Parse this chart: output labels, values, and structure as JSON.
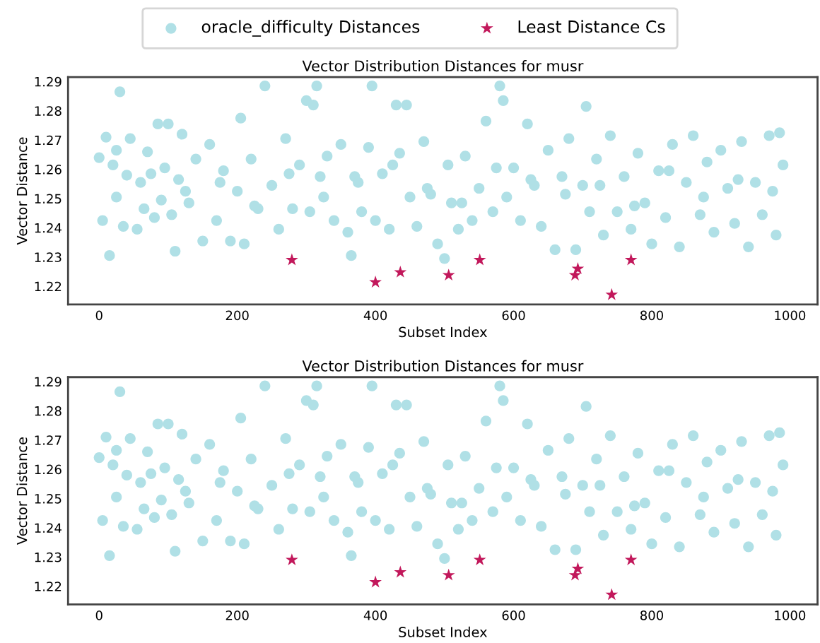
{
  "chart_data": [
    {
      "type": "scatter",
      "title": "Vector Distribution Distances for musr",
      "xlabel": "Subset Index",
      "ylabel": "Vector Distance",
      "xlim": [
        -45,
        1040
      ],
      "ylim": [
        1.2138,
        1.2915
      ],
      "xticks": [
        0,
        200,
        400,
        600,
        800,
        1000
      ],
      "yticks": [
        1.22,
        1.23,
        1.24,
        1.25,
        1.26,
        1.27,
        1.28,
        1.29
      ],
      "grid": false,
      "legend": "top",
      "marker": "circle",
      "series": [
        {
          "name": "oracle_difficulty Distances",
          "color": "#b0e0e6",
          "x": [
            0,
            5,
            10,
            15,
            20,
            25,
            30,
            35,
            40,
            45,
            55,
            60,
            65,
            70,
            80,
            85,
            90,
            95,
            100,
            105,
            110,
            115,
            120,
            130,
            140,
            150,
            160,
            170,
            180,
            190,
            200,
            205,
            210,
            220,
            230,
            240,
            250,
            260,
            270,
            280,
            290,
            300,
            305,
            310,
            315,
            320,
            330,
            340,
            350,
            360,
            365,
            370,
            380,
            390,
            395,
            400,
            410,
            420,
            430,
            435,
            445,
            450,
            460,
            470,
            480,
            490,
            500,
            505,
            510,
            520,
            530,
            540,
            550,
            560,
            570,
            580,
            585,
            590,
            600,
            610,
            620,
            630,
            640,
            650,
            660,
            670,
            680,
            690,
            700,
            705,
            710,
            720,
            730,
            740,
            750,
            760,
            770,
            780,
            790,
            800,
            810,
            820,
            830,
            840,
            850,
            860,
            870,
            880,
            890,
            900,
            910,
            920,
            930,
            940,
            950,
            960,
            970,
            980,
            985,
            990,
            25,
            75,
            125,
            175,
            225,
            275,
            325,
            375,
            425,
            475,
            525,
            575,
            625,
            675,
            725,
            775,
            825,
            875,
            925,
            975
          ],
          "values": [
            1.264,
            1.2425,
            1.271,
            1.2305,
            1.2615,
            1.2665,
            1.2865,
            1.2405,
            1.258,
            1.2705,
            1.2395,
            1.2555,
            1.2465,
            1.266,
            1.2435,
            1.2755,
            1.2495,
            1.2605,
            1.2755,
            1.2445,
            1.232,
            1.2565,
            1.272,
            1.2485,
            1.2635,
            1.2355,
            1.2685,
            1.2425,
            1.2595,
            1.2355,
            1.2525,
            1.2775,
            1.2345,
            1.2635,
            1.2465,
            1.2885,
            1.2545,
            1.2395,
            1.2705,
            1.2465,
            1.2615,
            1.2835,
            1.2455,
            1.282,
            1.2885,
            1.2575,
            1.2645,
            1.2425,
            1.2685,
            1.2385,
            1.2305,
            1.2575,
            1.2455,
            1.2675,
            1.2885,
            1.2425,
            1.2585,
            1.2395,
            1.282,
            1.2655,
            1.282,
            1.2505,
            1.2405,
            1.2695,
            1.2515,
            1.2345,
            1.2295,
            1.2615,
            1.2485,
            1.2395,
            1.2645,
            1.2425,
            1.2535,
            1.2765,
            1.2455,
            1.2885,
            1.2835,
            1.2505,
            1.2605,
            1.2425,
            1.2755,
            1.2545,
            1.2405,
            1.2665,
            1.2325,
            1.2575,
            1.2705,
            1.2325,
            1.2545,
            1.2815,
            1.2455,
            1.2635,
            1.2375,
            1.2715,
            1.2455,
            1.2575,
            1.2395,
            1.2655,
            1.2485,
            1.2345,
            1.2595,
            1.2435,
            1.2685,
            1.2335,
            1.2555,
            1.2715,
            1.2445,
            1.2625,
            1.2385,
            1.2665,
            1.2535,
            1.2415,
            1.2695,
            1.2335,
            1.2555,
            1.2445,
            1.2715,
            1.2375,
            1.2725,
            1.2615,
            1.2505,
            1.2585,
            1.2525,
            1.2555,
            1.2475,
            1.2585,
            1.2505,
            1.2555,
            1.2615,
            1.2535,
            1.2485,
            1.2605,
            1.2565,
            1.2515,
            1.2545,
            1.2475,
            1.2595,
            1.2505,
            1.2565,
            1.2525
          ]
        },
        {
          "name": "Least Distance Cs",
          "color": "#c2185b",
          "type": "scatter",
          "marker": "star",
          "x": [
            279,
            400,
            436,
            506,
            551,
            689,
            693,
            742,
            770
          ],
          "values": [
            1.229,
            1.2214,
            1.2248,
            1.2238,
            1.229,
            1.2238,
            1.226,
            1.2171,
            1.229
          ]
        }
      ]
    },
    {
      "type": "scatter",
      "title": "Vector Distribution Distances for musr",
      "xlabel": "Subset Index",
      "ylabel": "Vector Distance",
      "xlim": [
        -45,
        1040
      ],
      "ylim": [
        1.2138,
        1.2915
      ],
      "xticks": [
        0,
        200,
        400,
        600,
        800,
        1000
      ],
      "yticks": [
        1.22,
        1.23,
        1.24,
        1.25,
        1.26,
        1.27,
        1.28,
        1.29
      ],
      "grid": false,
      "marker": "circle",
      "series": [
        {
          "color": "#b0e0e6",
          "x": [
            0,
            5,
            10,
            15,
            20,
            25,
            30,
            35,
            40,
            45,
            55,
            60,
            65,
            70,
            80,
            85,
            90,
            95,
            100,
            105,
            110,
            115,
            120,
            130,
            140,
            150,
            160,
            170,
            180,
            190,
            200,
            205,
            210,
            220,
            230,
            240,
            250,
            260,
            270,
            280,
            290,
            300,
            305,
            310,
            315,
            320,
            330,
            340,
            350,
            360,
            365,
            370,
            380,
            390,
            395,
            400,
            410,
            420,
            430,
            435,
            445,
            450,
            460,
            470,
            480,
            490,
            500,
            505,
            510,
            520,
            530,
            540,
            550,
            560,
            570,
            580,
            585,
            590,
            600,
            610,
            620,
            630,
            640,
            650,
            660,
            670,
            680,
            690,
            700,
            705,
            710,
            720,
            730,
            740,
            750,
            760,
            770,
            780,
            790,
            800,
            810,
            820,
            830,
            840,
            850,
            860,
            870,
            880,
            890,
            900,
            910,
            920,
            930,
            940,
            950,
            960,
            970,
            980,
            985,
            990,
            25,
            75,
            125,
            175,
            225,
            275,
            325,
            375,
            425,
            475,
            525,
            575,
            625,
            675,
            725,
            775,
            825,
            875,
            925,
            975
          ],
          "values": [
            1.264,
            1.2425,
            1.271,
            1.2305,
            1.2615,
            1.2665,
            1.2865,
            1.2405,
            1.258,
            1.2705,
            1.2395,
            1.2555,
            1.2465,
            1.266,
            1.2435,
            1.2755,
            1.2495,
            1.2605,
            1.2755,
            1.2445,
            1.232,
            1.2565,
            1.272,
            1.2485,
            1.2635,
            1.2355,
            1.2685,
            1.2425,
            1.2595,
            1.2355,
            1.2525,
            1.2775,
            1.2345,
            1.2635,
            1.2465,
            1.2885,
            1.2545,
            1.2395,
            1.2705,
            1.2465,
            1.2615,
            1.2835,
            1.2455,
            1.282,
            1.2885,
            1.2575,
            1.2645,
            1.2425,
            1.2685,
            1.2385,
            1.2305,
            1.2575,
            1.2455,
            1.2675,
            1.2885,
            1.2425,
            1.2585,
            1.2395,
            1.282,
            1.2655,
            1.282,
            1.2505,
            1.2405,
            1.2695,
            1.2515,
            1.2345,
            1.2295,
            1.2615,
            1.2485,
            1.2395,
            1.2645,
            1.2425,
            1.2535,
            1.2765,
            1.2455,
            1.2885,
            1.2835,
            1.2505,
            1.2605,
            1.2425,
            1.2755,
            1.2545,
            1.2405,
            1.2665,
            1.2325,
            1.2575,
            1.2705,
            1.2325,
            1.2545,
            1.2815,
            1.2455,
            1.2635,
            1.2375,
            1.2715,
            1.2455,
            1.2575,
            1.2395,
            1.2655,
            1.2485,
            1.2345,
            1.2595,
            1.2435,
            1.2685,
            1.2335,
            1.2555,
            1.2715,
            1.2445,
            1.2625,
            1.2385,
            1.2665,
            1.2535,
            1.2415,
            1.2695,
            1.2335,
            1.2555,
            1.2445,
            1.2715,
            1.2375,
            1.2725,
            1.2615,
            1.2505,
            1.2585,
            1.2525,
            1.2555,
            1.2475,
            1.2585,
            1.2505,
            1.2555,
            1.2615,
            1.2535,
            1.2485,
            1.2605,
            1.2565,
            1.2515,
            1.2545,
            1.2475,
            1.2595,
            1.2505,
            1.2565,
            1.2525
          ]
        },
        {
          "color": "#c2185b",
          "type": "scatter",
          "marker": "star",
          "x": [
            279,
            400,
            436,
            506,
            551,
            689,
            693,
            742,
            770
          ],
          "values": [
            1.229,
            1.2214,
            1.2248,
            1.2238,
            1.229,
            1.2238,
            1.226,
            1.2171,
            1.229
          ]
        }
      ]
    }
  ]
}
